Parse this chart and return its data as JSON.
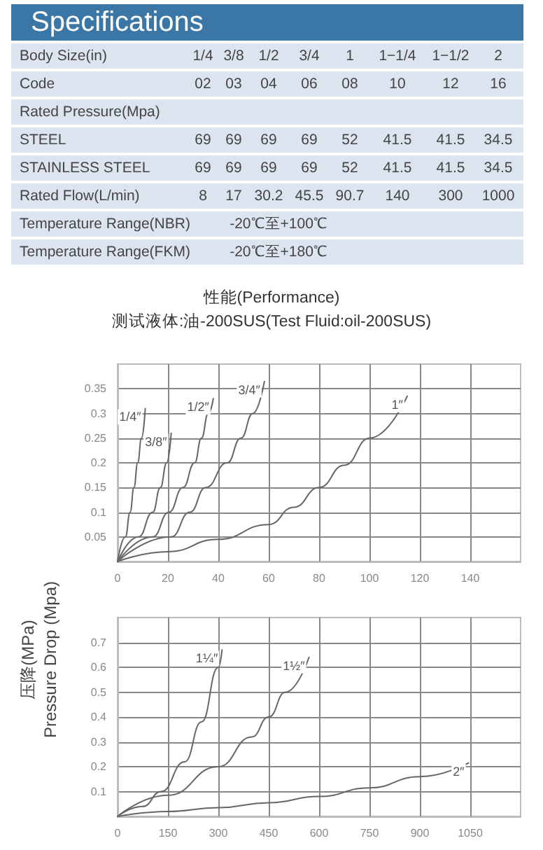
{
  "chart_data": [
    {
      "type": "other",
      "title": "Specifications",
      "annotations": [
        "Body Size(in)",
        "1/4",
        "3/8",
        "1/2",
        "3/4",
        "1",
        "1−1/4",
        "1−1/2",
        "2",
        "Code",
        "02",
        "03",
        "04",
        "06",
        "08",
        "10",
        "12",
        "16",
        "Rated Pressure(Mpa)",
        "STEEL",
        "69",
        "69",
        "69",
        "69",
        "52",
        "41.5",
        "41.5",
        "34.5",
        "STAINLESS STEEL",
        "69",
        "69",
        "69",
        "69",
        "52",
        "41.5",
        "41.5",
        "34.5",
        "Rated Flow(L/min)",
        "8",
        "17",
        "30.2",
        "45.5",
        "90.7",
        "140",
        "300",
        "1000",
        "Temperature Range(NBR)",
        "-20℃至+100℃",
        "Temperature Range(FKM)",
        "-20℃至+180℃"
      ]
    },
    {
      "type": "line",
      "title": "性能(Performance)",
      "subtitle": "测试液体:油-200SUS(Test Fluid:oil-200SUS)",
      "ylabel": "压降(MPa)\nPressure Drop (Mpa)",
      "xlim": [
        0,
        160
      ],
      "xticks": [
        0,
        20,
        40,
        60,
        80,
        100,
        120,
        140
      ],
      "ylim": [
        0,
        0.4
      ],
      "yticks": [
        0.05,
        0.1,
        0.15,
        0.2,
        0.25,
        0.3,
        0.35
      ],
      "grid": true,
      "legend": false,
      "marker": "none",
      "line_style": "solid",
      "series": [
        {
          "name": "1/4″",
          "color": "#666666",
          "x": [
            0,
            3.1,
            5,
            6.5,
            8,
            9.5,
            11
          ],
          "values": [
            0,
            0.05,
            0.1,
            0.15,
            0.2,
            0.25,
            0.31
          ]
        },
        {
          "name": "3/8″",
          "color": "#666666",
          "x": [
            0,
            8.3,
            14,
            17,
            19.5,
            21.3
          ],
          "values": [
            0,
            0.05,
            0.1,
            0.15,
            0.2,
            0.26
          ]
        },
        {
          "name": "1/2″",
          "color": "#666666",
          "x": [
            0,
            14,
            20.4,
            26,
            30.6,
            33.3,
            36,
            38
          ],
          "values": [
            0,
            0.05,
            0.1,
            0.15,
            0.2,
            0.25,
            0.3,
            0.33
          ]
        },
        {
          "name": "3/4″",
          "color": "#666666",
          "x": [
            0,
            21.3,
            28.7,
            35,
            43.5,
            49,
            53.7,
            58.3
          ],
          "values": [
            0,
            0.05,
            0.1,
            0.15,
            0.2,
            0.25,
            0.3,
            0.365
          ]
        },
        {
          "name": "1″",
          "color": "#666666",
          "x": [
            0,
            20,
            40,
            60,
            70,
            80,
            90,
            100,
            115
          ],
          "values": [
            0,
            0.02,
            0.045,
            0.075,
            0.11,
            0.15,
            0.195,
            0.25,
            0.335
          ]
        }
      ]
    },
    {
      "type": "line",
      "xlim": [
        0,
        1200
      ],
      "xticks": [
        0,
        150,
        300,
        450,
        600,
        750,
        900,
        1050
      ],
      "ylim": [
        0,
        0.8
      ],
      "yticks": [
        0.1,
        0.2,
        0.3,
        0.4,
        0.5,
        0.6,
        0.7
      ],
      "grid": true,
      "legend": false,
      "marker": "none",
      "line_style": "solid",
      "series": [
        {
          "name": "1¼″",
          "color": "#666666",
          "x": [
            0,
            75,
            130,
            200,
            250,
            300,
            311
          ],
          "values": [
            0,
            0.04,
            0.1,
            0.22,
            0.38,
            0.6,
            0.67
          ]
        },
        {
          "name": "1½″",
          "color": "#666666",
          "x": [
            0,
            150,
            300,
            400,
            450,
            500,
            570
          ],
          "values": [
            0,
            0.085,
            0.2,
            0.32,
            0.4,
            0.5,
            0.64
          ]
        },
        {
          "name": "2″",
          "color": "#666666",
          "x": [
            0,
            150,
            300,
            450,
            600,
            750,
            900,
            1045
          ],
          "values": [
            0,
            0.02,
            0.035,
            0.055,
            0.08,
            0.115,
            0.16,
            0.215
          ]
        }
      ]
    }
  ]
}
